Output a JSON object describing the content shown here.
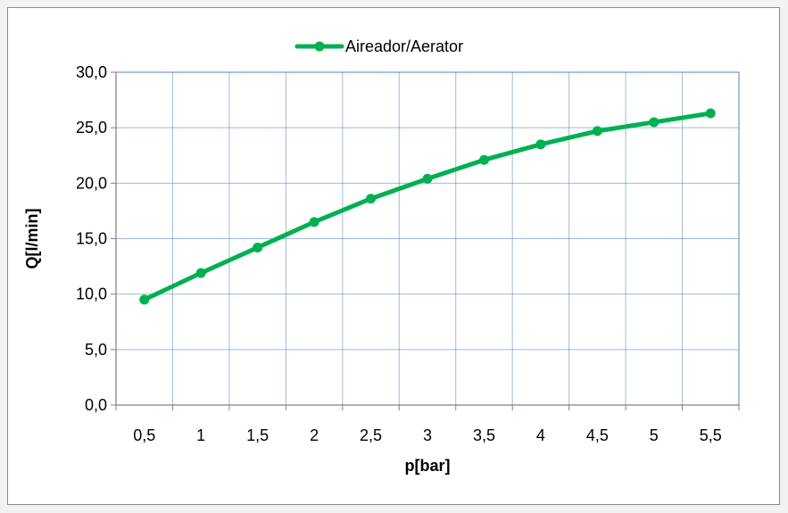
{
  "chart_data": {
    "type": "line",
    "xlabel": "p[bar]",
    "ylabel": "Q[l/min]",
    "categories": [
      "0,5",
      "1",
      "1,5",
      "2",
      "2,5",
      "3",
      "3,5",
      "4",
      "4,5",
      "5",
      "5,5"
    ],
    "y_ticks": [
      "0,0",
      "5,0",
      "10,0",
      "15,0",
      "20,0",
      "25,0",
      "30,0"
    ],
    "ylim": [
      0,
      30
    ],
    "grid": true,
    "legend_position": "top",
    "series": [
      {
        "name": "Aireador/Aerator",
        "color": "#00b050",
        "values": [
          9.5,
          11.9,
          14.2,
          16.5,
          18.6,
          20.4,
          22.1,
          23.5,
          24.7,
          25.5,
          26.3
        ]
      }
    ]
  }
}
